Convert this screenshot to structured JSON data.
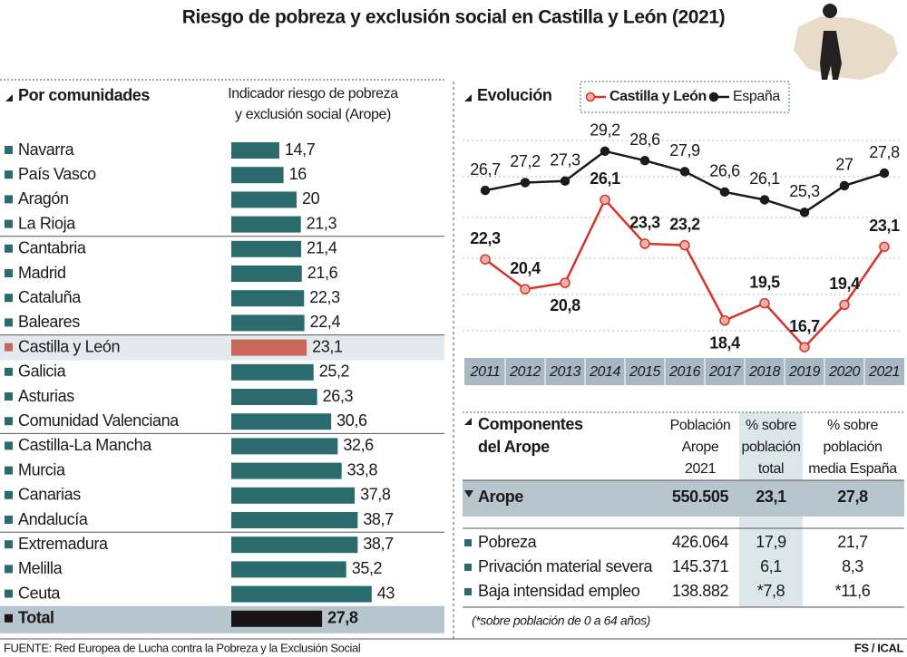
{
  "title": "Riesgo de pobreza y exclusión social en Castilla y León (2021)",
  "source": "FUENTE: Red Europea de Lucha contra la Pobreza y la Exclusión Social",
  "credit": "FS / ICAL",
  "chart_data": [
    {
      "type": "bar",
      "title": "Por comunidades",
      "subtitle": [
        "Indicador riesgo de pobreza",
        "y exclusión social (Arope)"
      ],
      "categories": [
        "Navarra",
        "País Vasco",
        "Aragón",
        "La Rioja",
        "Cantabria",
        "Madrid",
        "Cataluña",
        "Baleares",
        "Castilla y León",
        "Galicia",
        "Asturias",
        "Comunidad Valenciana",
        "Castilla-La Mancha",
        "Murcia",
        "Canarias",
        "Andalucía",
        "Extremadura",
        "Melilla",
        "Ceuta",
        "Total"
      ],
      "values": [
        14.7,
        16,
        20,
        21.3,
        21.4,
        21.6,
        22.3,
        22.4,
        23.1,
        25.2,
        26.3,
        30.6,
        32.6,
        33.8,
        37.8,
        38.7,
        38.7,
        35.2,
        43,
        27.8
      ],
      "value_labels": [
        "14,7",
        "16",
        "20",
        "21,3",
        "21,4",
        "21,6",
        "22,3",
        "22,4",
        "23,1",
        "25,2",
        "26,3",
        "30,6",
        "32,6",
        "33,8",
        "37,8",
        "38,7",
        "38,7",
        "35,2",
        "43",
        "27,8"
      ],
      "colors": [
        "#2b6b6e",
        "#2b6b6e",
        "#2b6b6e",
        "#2b6b6e",
        "#2b6b6e",
        "#2b6b6e",
        "#2b6b6e",
        "#2b6b6e",
        "#c9675a",
        "#2b6b6e",
        "#2b6b6e",
        "#2b6b6e",
        "#2b6b6e",
        "#2b6b6e",
        "#2b6b6e",
        "#2b6b6e",
        "#2b6b6e",
        "#2b6b6e",
        "#2b6b6e",
        "#1a1416"
      ]
    },
    {
      "type": "line",
      "title": "Evolución",
      "x": [
        2011,
        2012,
        2013,
        2014,
        2015,
        2016,
        2017,
        2018,
        2019,
        2020,
        2021
      ],
      "series": [
        {
          "name": "Castilla y León",
          "color": "#d2352b",
          "values": [
            22.3,
            20.4,
            20.8,
            26.1,
            23.3,
            23.2,
            18.4,
            19.5,
            16.7,
            19.4,
            23.1
          ],
          "value_labels": [
            "22,3",
            "20,4",
            "20,8",
            "26,1",
            "23,3",
            "23,2",
            "18,4",
            "19,5",
            "16,7",
            "19,4",
            "23,1"
          ]
        },
        {
          "name": "España",
          "color": "#1a1a1a",
          "values": [
            26.7,
            27.2,
            27.3,
            29.2,
            28.6,
            27.9,
            26.6,
            26.1,
            25.3,
            27,
            27.8
          ],
          "value_labels": [
            "26,7",
            "27,2",
            "27,3",
            "29,2",
            "28,6",
            "27,9",
            "26,6",
            "26,1",
            "25,3",
            "27",
            "27,8"
          ]
        }
      ],
      "legend": "top"
    }
  ],
  "table": {
    "title": [
      "Componentes",
      "del Arope"
    ],
    "columns": [
      [
        "Población",
        "Arope",
        "2021"
      ],
      [
        "% sobre",
        "población",
        "total"
      ],
      [
        "% sobre",
        "población",
        "media España"
      ]
    ],
    "rows": [
      [
        "Arope",
        "550.505",
        "23,1",
        "27,8"
      ],
      [
        "Pobreza",
        "426.064",
        "17,9",
        "21,7"
      ],
      [
        "Privación material severa",
        "145.371",
        "6,1",
        "8,3"
      ],
      [
        "Baja intensidad empleo",
        "138.882",
        "*7,8",
        "*11,6"
      ]
    ],
    "note": "(*sobre población de 0 a 64 años)"
  }
}
